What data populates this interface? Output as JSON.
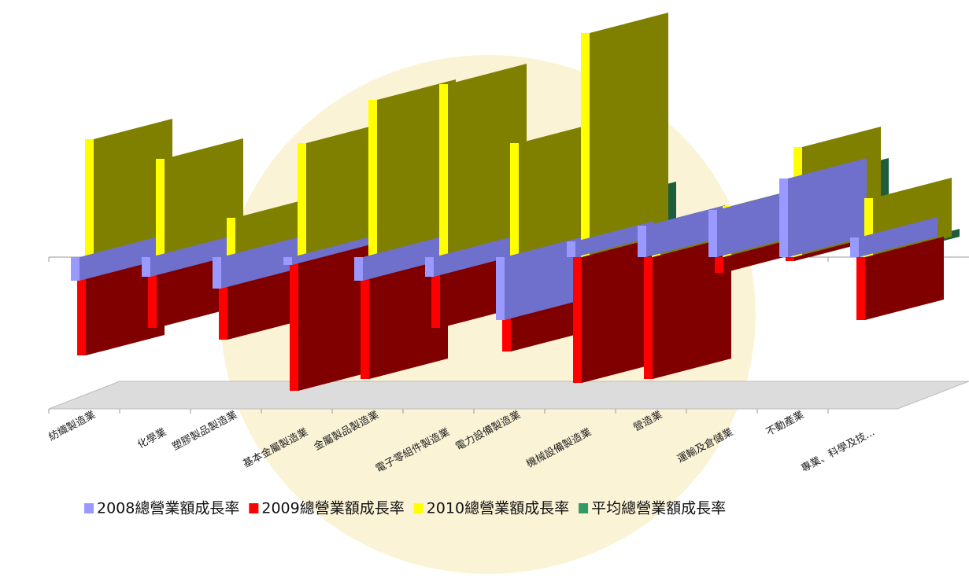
{
  "chart_data": {
    "type": "bar3d",
    "categories": [
      "紡織製造業",
      "化學業",
      "塑膠製品製造業",
      "基本金屬製造業",
      "金屬製品製造業",
      "電子零組件製造業",
      "電力設備製造業",
      "機械設備製造業",
      "營造業",
      "運輸及倉儲業",
      "不動產業",
      "專業、科學及技..."
    ],
    "series": [
      {
        "name": "2008總營業額成長率",
        "color": "#9999ff",
        "values": [
          -6,
          -5,
          -8,
          -2,
          -6,
          -5,
          -16,
          4,
          8,
          12,
          20,
          5
        ]
      },
      {
        "name": "2009總營業額成長率",
        "color": "#ff0000",
        "values": [
          -25,
          -18,
          -21,
          -34,
          -31,
          -18,
          -24,
          -32,
          -31,
          -4,
          -1,
          -16
        ]
      },
      {
        "name": "2010總營業額成長率",
        "color": "#ffff00",
        "values": [
          30,
          25,
          10,
          29,
          40,
          44,
          29,
          57,
          8,
          13,
          28,
          15
        ]
      },
      {
        "name": "平均總營業額成長率",
        "color": "#339966",
        "values": [
          0,
          2,
          -6,
          -3,
          2,
          8,
          -4,
          14,
          -4,
          9,
          20,
          2
        ]
      }
    ],
    "legend": "bottom"
  }
}
